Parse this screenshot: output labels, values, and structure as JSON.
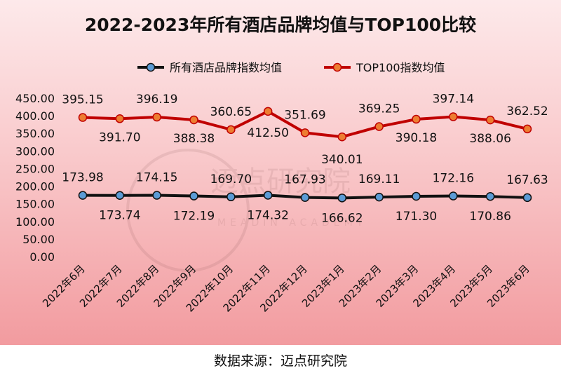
{
  "source_text": "数据来源：迈点研究院",
  "watermark": {
    "main": "迈点研究院",
    "sub": "MEADIN ACADEMY"
  },
  "chart_data": {
    "type": "line",
    "title": "2022-2023年所有酒店品牌均值与TOP100比较",
    "categories": [
      "2022年6月",
      "2022年7月",
      "2022年8月",
      "2022年9月",
      "2022年10月",
      "2022年11月",
      "2022年12月",
      "2023年1月",
      "2023年2月",
      "2023年3月",
      "2023年4月",
      "2023年5月",
      "2023年6月"
    ],
    "series": [
      {
        "name": "所有酒店品牌指数均值",
        "line_color": "#111111",
        "marker_color": "#5b9bd5",
        "values": [
          173.98,
          173.74,
          174.15,
          172.19,
          169.7,
          174.32,
          167.93,
          166.62,
          169.11,
          171.3,
          172.16,
          170.86,
          167.63
        ],
        "labels": [
          "173.98",
          "173.74",
          "174.15",
          "172.19",
          "169.70",
          "174.32",
          "167.93",
          "166.62",
          "169.11",
          "171.30",
          "172.16",
          "170.86",
          "167.63"
        ]
      },
      {
        "name": "TOP100指数均值",
        "line_color": "#c00000",
        "marker_color": "#ed7d31",
        "values": [
          395.15,
          391.7,
          396.19,
          388.38,
          360.65,
          412.5,
          351.69,
          340.01,
          369.25,
          390.18,
          397.14,
          388.06,
          362.52
        ],
        "labels": [
          "395.15",
          "391.70",
          "396.19",
          "388.38",
          "360.65",
          "412.50",
          "351.69",
          "340.01",
          "369.25",
          "390.18",
          "397.14",
          "388.06",
          "362.52"
        ]
      }
    ],
    "ylim": [
      0,
      450
    ],
    "yticks": [
      "0.00",
      "50.00",
      "100.00",
      "150.00",
      "200.00",
      "250.00",
      "300.00",
      "350.00",
      "400.00",
      "450.00"
    ],
    "xlabel": "",
    "ylabel": "",
    "legend": "top-center",
    "grid": false
  }
}
